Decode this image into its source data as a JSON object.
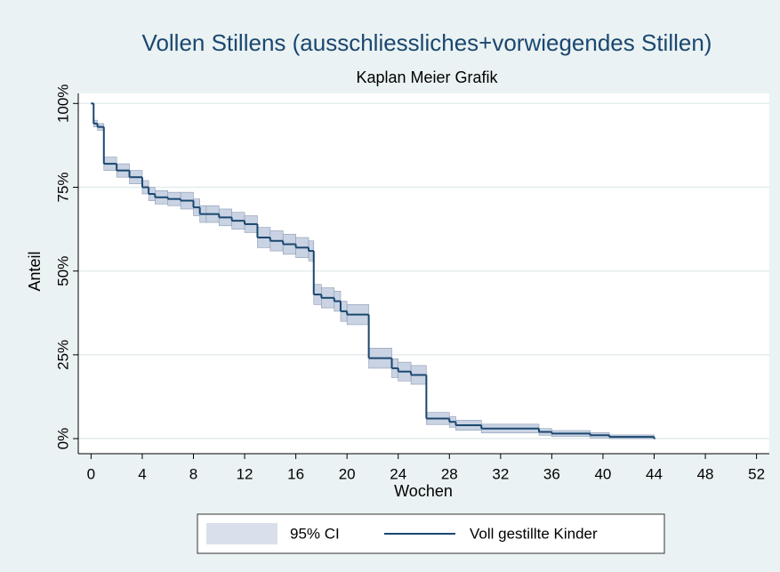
{
  "chart_data": {
    "type": "step",
    "title": "Vollen Stillens (ausschliessliches+vorwiegendes Stillen)",
    "subtitle": "Kaplan Meier Grafik",
    "xlabel": "Wochen",
    "ylabel": "Anteil",
    "x": [
      0,
      0.2,
      0.5,
      1,
      2,
      3,
      4,
      4.5,
      5,
      6,
      7,
      8,
      8.5,
      9,
      10,
      11,
      12,
      13,
      14,
      15,
      16,
      17,
      17.4,
      18,
      19,
      19.5,
      20,
      21.7,
      23.5,
      24,
      25,
      26.2,
      28,
      28.5,
      30.5,
      35,
      36,
      39,
      40.5,
      44
    ],
    "series": [
      {
        "name": "Voll gestillte Kinder",
        "color": "#1a476f",
        "values": [
          100,
          94,
          93,
          82,
          80,
          78,
          75,
          73,
          72,
          71.5,
          71,
          69,
          67,
          67,
          66,
          65,
          64,
          60,
          59,
          58,
          57,
          56,
          43,
          42,
          41,
          38,
          37,
          24,
          21,
          20,
          19,
          6,
          5,
          4,
          3,
          2,
          1.5,
          1,
          0.5,
          0
        ]
      }
    ],
    "ci": {
      "name": "95% CI",
      "color": "#c9d3e3",
      "upper": [
        100,
        95,
        94,
        84,
        82,
        80,
        77,
        75,
        74,
        73.5,
        73.5,
        71.5,
        69.5,
        69.5,
        68.5,
        67.5,
        66.5,
        63,
        62,
        61,
        60,
        59,
        46,
        45,
        44,
        41,
        40,
        27,
        23.8,
        22.8,
        21.8,
        7.8,
        6.6,
        5.5,
        4.3,
        3,
        2.4,
        1.8,
        1.1,
        0.3
      ],
      "lower": [
        100,
        93,
        92,
        80,
        78,
        76,
        73,
        71,
        70,
        69.5,
        68.5,
        66.5,
        64.5,
        64.5,
        63.5,
        62.5,
        61.5,
        57,
        56,
        55,
        54,
        53,
        40,
        39,
        38,
        35,
        34,
        21,
        18.2,
        17.2,
        16.2,
        4.2,
        3.4,
        2.5,
        1.7,
        1,
        0.6,
        0.2,
        0,
        0
      ]
    },
    "xlim": [
      -1,
      53
    ],
    "ylim": [
      -4.5,
      103
    ],
    "xticks": [
      0,
      4,
      8,
      12,
      16,
      20,
      24,
      28,
      32,
      36,
      40,
      44,
      48,
      52
    ],
    "yticks": [
      {
        "value": 0,
        "label": "0%"
      },
      {
        "value": 25,
        "label": "25%"
      },
      {
        "value": 50,
        "label": "50%"
      },
      {
        "value": 75,
        "label": "75%"
      },
      {
        "value": 100,
        "label": "100%"
      }
    ],
    "grid": true,
    "legend": "bottom"
  }
}
